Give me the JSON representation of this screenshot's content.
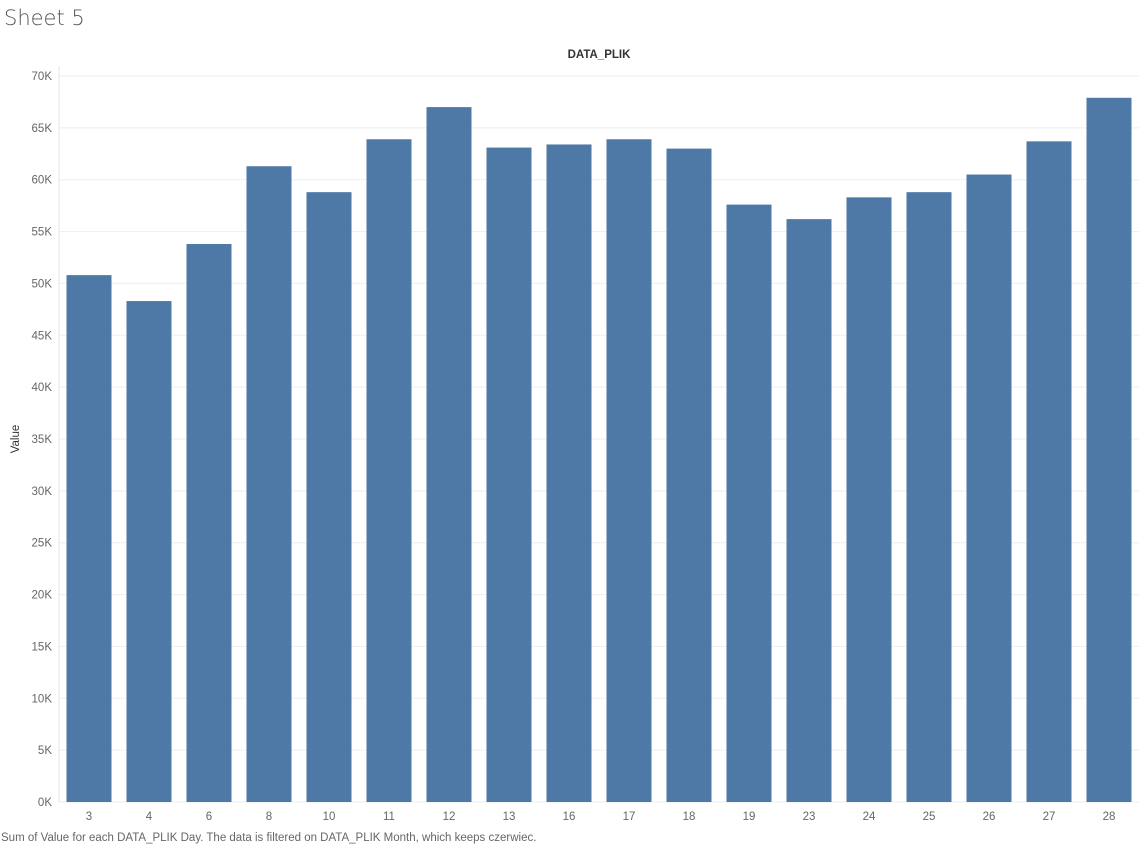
{
  "sheet_title": "Sheet 5",
  "caption": "Sum of Value for each DATA_PLIK Day. The data is filtered on DATA_PLIK Month, which keeps czerwiec.",
  "colors": {
    "bar": "#4e79a7",
    "gridline": "#eeeeee",
    "axis_text": "#666666"
  },
  "chart_data": {
    "type": "bar",
    "title": "DATA_PLIK",
    "xlabel": "",
    "ylabel": "Value",
    "categories": [
      "3",
      "4",
      "6",
      "8",
      "10",
      "11",
      "12",
      "13",
      "16",
      "17",
      "18",
      "19",
      "23",
      "24",
      "25",
      "26",
      "27",
      "28"
    ],
    "values": [
      50800,
      48300,
      53800,
      61300,
      58800,
      63900,
      67000,
      63100,
      63400,
      63900,
      63000,
      57600,
      56200,
      58300,
      58800,
      60500,
      63700,
      67900
    ],
    "ylim": [
      0,
      70000
    ],
    "y_ticks": [
      0,
      5000,
      10000,
      15000,
      20000,
      25000,
      30000,
      35000,
      40000,
      45000,
      50000,
      55000,
      60000,
      65000,
      70000
    ],
    "y_tick_labels": [
      "0K",
      "5K",
      "10K",
      "15K",
      "20K",
      "25K",
      "30K",
      "35K",
      "40K",
      "45K",
      "50K",
      "55K",
      "60K",
      "65K",
      "70K"
    ],
    "grid": true,
    "legend": "none"
  }
}
